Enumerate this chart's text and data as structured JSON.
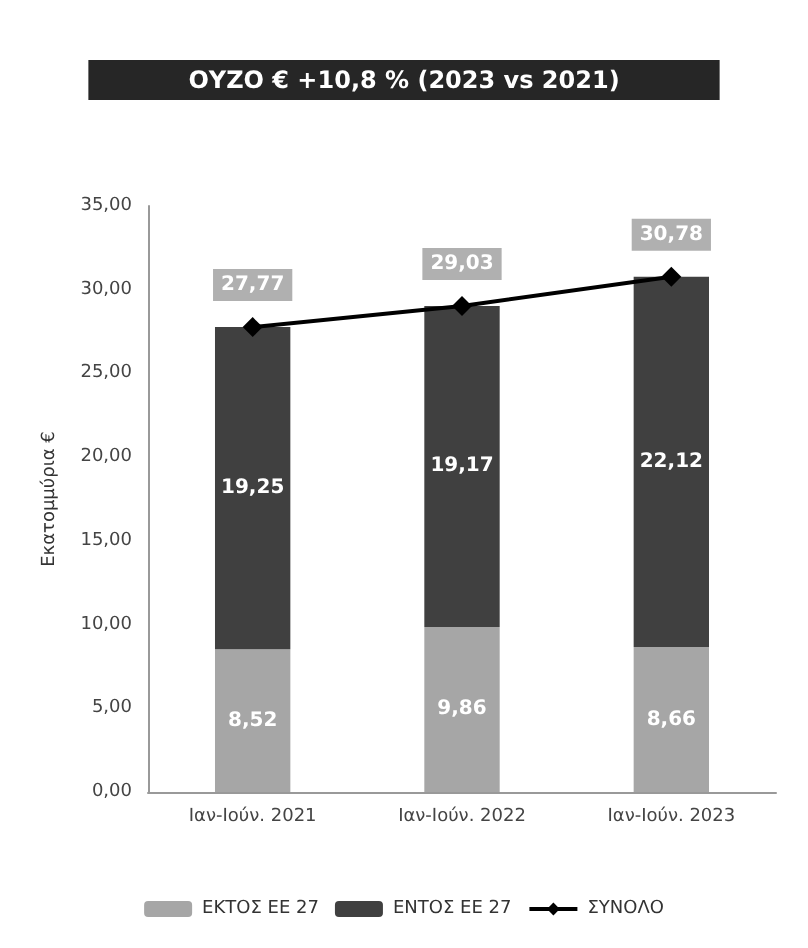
{
  "chart_data": {
    "type": "bar",
    "stacked": true,
    "title": "ΟΥΖΟ € +10,8 % (2023 vs 2021)",
    "ylabel": "Εκατομμύρια €",
    "categories": [
      "Ιαν-Ιούν. 2021",
      "Ιαν-Ιούν. 2022",
      "Ιαν-Ιούν. 2023"
    ],
    "series": [
      {
        "name": "ΕΚΤΟΣ ΕΕ 27",
        "color": "#a6a6a6",
        "values": [
          8.52,
          9.86,
          8.66
        ],
        "value_labels": [
          "8,52",
          "9,86",
          "8,66"
        ]
      },
      {
        "name": "ΕΝΤΟΣ ΕΕ 27",
        "color": "#404040",
        "values": [
          19.25,
          19.17,
          22.12
        ],
        "value_labels": [
          "19,25",
          "19,17",
          "22,12"
        ]
      },
      {
        "name": "ΣΥΝΟΛΟ",
        "type": "line",
        "color": "#000000",
        "marker": "diamond",
        "values": [
          27.77,
          29.03,
          30.78
        ],
        "value_labels": [
          "27,77",
          "29,03",
          "30,78"
        ]
      }
    ],
    "ylim": [
      0,
      35
    ],
    "yticks": [
      {
        "value": 0,
        "label": "0,00"
      },
      {
        "value": 5,
        "label": "5,00"
      },
      {
        "value": 10,
        "label": "10,00"
      },
      {
        "value": 15,
        "label": "15,00"
      },
      {
        "value": 20,
        "label": "20,00"
      },
      {
        "value": 25,
        "label": "25,00"
      },
      {
        "value": 30,
        "label": "30,00"
      },
      {
        "value": 35,
        "label": "35,00"
      }
    ],
    "grid": false,
    "legend": "bottom"
  }
}
